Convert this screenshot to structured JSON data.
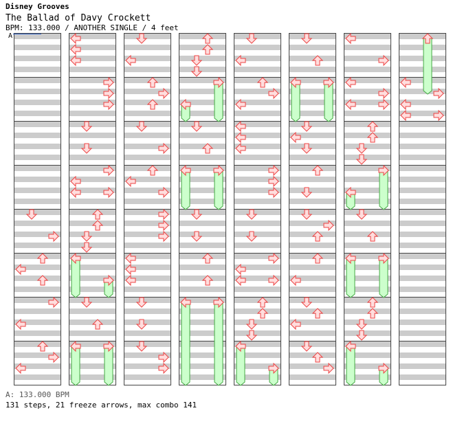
{
  "header": {
    "series": "Disney Grooves",
    "title": "The Ballad of Davy Crockett",
    "info": "BPM: 133.000 / ANOTHER SINGLE / 4 feet"
  },
  "bpm_marker": "A",
  "footer": {
    "bpm_text": "A: 133.000 BPM",
    "stats": "131 steps, 21 freeze arrows, max combo 141"
  },
  "colors": {
    "stripe": "#cccccc",
    "border": "#444444",
    "arrow_fill": "#ffdddd",
    "arrow_stroke": "#ee4444",
    "freeze_fill": "#ccffcc",
    "freeze_stroke": "#44aa44",
    "bpm_line": "#3366cc"
  },
  "chart": {
    "columns": 8,
    "blocks_per_column": 8,
    "rows_per_block": 8,
    "lanes": [
      "left",
      "down",
      "up",
      "right"
    ],
    "notes": [
      {
        "col": 1,
        "blk": 0,
        "row": 0,
        "lane": "left"
      },
      {
        "col": 1,
        "blk": 0,
        "row": 1,
        "lane": "left"
      },
      {
        "col": 1,
        "blk": 0,
        "row": 2,
        "lane": "left"
      },
      {
        "col": 2,
        "blk": 0,
        "row": 0,
        "lane": "down"
      },
      {
        "col": 2,
        "blk": 0,
        "row": 2,
        "lane": "left"
      },
      {
        "col": 3,
        "blk": 0,
        "row": 0,
        "lane": "up"
      },
      {
        "col": 3,
        "blk": 0,
        "row": 1,
        "lane": "up"
      },
      {
        "col": 3,
        "blk": 0,
        "row": 2,
        "lane": "down"
      },
      {
        "col": 3,
        "blk": 0,
        "row": 3,
        "lane": "down"
      },
      {
        "col": 4,
        "blk": 0,
        "row": 0,
        "lane": "down"
      },
      {
        "col": 4,
        "blk": 0,
        "row": 2,
        "lane": "left"
      },
      {
        "col": 5,
        "blk": 0,
        "row": 0,
        "lane": "down"
      },
      {
        "col": 5,
        "blk": 0,
        "row": 2,
        "lane": "up"
      },
      {
        "col": 6,
        "blk": 0,
        "row": 0,
        "lane": "left"
      },
      {
        "col": 6,
        "blk": 0,
        "row": 2,
        "lane": "right"
      },
      {
        "col": 7,
        "blk": 0,
        "row": 0,
        "lane": "up",
        "hold": 5
      },
      {
        "col": 1,
        "blk": 1,
        "row": 0,
        "lane": "right"
      },
      {
        "col": 1,
        "blk": 1,
        "row": 1,
        "lane": "right"
      },
      {
        "col": 1,
        "blk": 1,
        "row": 2,
        "lane": "right"
      },
      {
        "col": 2,
        "blk": 1,
        "row": 0,
        "lane": "up"
      },
      {
        "col": 2,
        "blk": 1,
        "row": 1,
        "lane": "right"
      },
      {
        "col": 2,
        "blk": 1,
        "row": 2,
        "lane": "up"
      },
      {
        "col": 3,
        "blk": 1,
        "row": 0,
        "lane": "right",
        "hold": 3.5
      },
      {
        "col": 3,
        "blk": 1,
        "row": 2,
        "lane": "left",
        "hold": 1.5
      },
      {
        "col": 4,
        "blk": 1,
        "row": 0,
        "lane": "up"
      },
      {
        "col": 4,
        "blk": 1,
        "row": 1,
        "lane": "right"
      },
      {
        "col": 4,
        "blk": 1,
        "row": 2,
        "lane": "left"
      },
      {
        "col": 5,
        "blk": 1,
        "row": 0,
        "lane": "left",
        "hold": 3.5
      },
      {
        "col": 5,
        "blk": 1,
        "row": 0,
        "lane": "right",
        "hold": 3.5
      },
      {
        "col": 6,
        "blk": 1,
        "row": 0,
        "lane": "left"
      },
      {
        "col": 6,
        "blk": 1,
        "row": 1,
        "lane": "right"
      },
      {
        "col": 6,
        "blk": 1,
        "row": 2,
        "lane": "left"
      },
      {
        "col": 6,
        "blk": 1,
        "row": 2,
        "lane": "right"
      },
      {
        "col": 7,
        "blk": 1,
        "row": 0,
        "lane": "left"
      },
      {
        "col": 7,
        "blk": 1,
        "row": 1,
        "lane": "right"
      },
      {
        "col": 7,
        "blk": 1,
        "row": 2,
        "lane": "left"
      },
      {
        "col": 7,
        "blk": 1,
        "row": 3,
        "lane": "left"
      },
      {
        "col": 7,
        "blk": 1,
        "row": 3,
        "lane": "right"
      },
      {
        "col": 1,
        "blk": 2,
        "row": 0,
        "lane": "down"
      },
      {
        "col": 1,
        "blk": 2,
        "row": 2,
        "lane": "down"
      },
      {
        "col": 2,
        "blk": 2,
        "row": 0,
        "lane": "down"
      },
      {
        "col": 2,
        "blk": 2,
        "row": 2,
        "lane": "right"
      },
      {
        "col": 3,
        "blk": 2,
        "row": 0,
        "lane": "down"
      },
      {
        "col": 3,
        "blk": 2,
        "row": 2,
        "lane": "up"
      },
      {
        "col": 4,
        "blk": 2,
        "row": 0,
        "lane": "left"
      },
      {
        "col": 4,
        "blk": 2,
        "row": 1,
        "lane": "left"
      },
      {
        "col": 4,
        "blk": 2,
        "row": 2,
        "lane": "left"
      },
      {
        "col": 5,
        "blk": 2,
        "row": 0,
        "lane": "down"
      },
      {
        "col": 5,
        "blk": 2,
        "row": 1,
        "lane": "left"
      },
      {
        "col": 5,
        "blk": 2,
        "row": 2,
        "lane": "down"
      },
      {
        "col": 6,
        "blk": 2,
        "row": 0,
        "lane": "up"
      },
      {
        "col": 6,
        "blk": 2,
        "row": 1,
        "lane": "up"
      },
      {
        "col": 6,
        "blk": 2,
        "row": 2,
        "lane": "down"
      },
      {
        "col": 6,
        "blk": 2,
        "row": 3,
        "lane": "down"
      },
      {
        "col": 1,
        "blk": 3,
        "row": 0,
        "lane": "right"
      },
      {
        "col": 1,
        "blk": 3,
        "row": 1,
        "lane": "left"
      },
      {
        "col": 1,
        "blk": 3,
        "row": 2,
        "lane": "left"
      },
      {
        "col": 1,
        "blk": 3,
        "row": 2,
        "lane": "right"
      },
      {
        "col": 2,
        "blk": 3,
        "row": 0,
        "lane": "up"
      },
      {
        "col": 2,
        "blk": 3,
        "row": 1,
        "lane": "left"
      },
      {
        "col": 2,
        "blk": 3,
        "row": 2,
        "lane": "right"
      },
      {
        "col": 3,
        "blk": 3,
        "row": 0,
        "lane": "left",
        "hold": 3.5
      },
      {
        "col": 3,
        "blk": 3,
        "row": 0,
        "lane": "right",
        "hold": 3.5
      },
      {
        "col": 4,
        "blk": 3,
        "row": 0,
        "lane": "right"
      },
      {
        "col": 4,
        "blk": 3,
        "row": 1,
        "lane": "right"
      },
      {
        "col": 4,
        "blk": 3,
        "row": 2,
        "lane": "right"
      },
      {
        "col": 5,
        "blk": 3,
        "row": 0,
        "lane": "up"
      },
      {
        "col": 5,
        "blk": 3,
        "row": 2,
        "lane": "down"
      },
      {
        "col": 6,
        "blk": 3,
        "row": 0,
        "lane": "right",
        "hold": 3.5
      },
      {
        "col": 6,
        "blk": 3,
        "row": 2,
        "lane": "left",
        "hold": 1.5
      },
      {
        "col": 0,
        "blk": 4,
        "row": 0,
        "lane": "down"
      },
      {
        "col": 0,
        "blk": 4,
        "row": 2,
        "lane": "right"
      },
      {
        "col": 1,
        "blk": 4,
        "row": 0,
        "lane": "up"
      },
      {
        "col": 1,
        "blk": 4,
        "row": 1,
        "lane": "up"
      },
      {
        "col": 1,
        "blk": 4,
        "row": 2,
        "lane": "down"
      },
      {
        "col": 1,
        "blk": 4,
        "row": 3,
        "lane": "down"
      },
      {
        "col": 2,
        "blk": 4,
        "row": 0,
        "lane": "right"
      },
      {
        "col": 2,
        "blk": 4,
        "row": 1,
        "lane": "right"
      },
      {
        "col": 2,
        "blk": 4,
        "row": 2,
        "lane": "right"
      },
      {
        "col": 3,
        "blk": 4,
        "row": 0,
        "lane": "down"
      },
      {
        "col": 3,
        "blk": 4,
        "row": 2,
        "lane": "down"
      },
      {
        "col": 4,
        "blk": 4,
        "row": 0,
        "lane": "down"
      },
      {
        "col": 4,
        "blk": 4,
        "row": 2,
        "lane": "down"
      },
      {
        "col": 5,
        "blk": 4,
        "row": 0,
        "lane": "down"
      },
      {
        "col": 5,
        "blk": 4,
        "row": 1,
        "lane": "right"
      },
      {
        "col": 5,
        "blk": 4,
        "row": 2,
        "lane": "up"
      },
      {
        "col": 6,
        "blk": 4,
        "row": 0,
        "lane": "down"
      },
      {
        "col": 6,
        "blk": 4,
        "row": 2,
        "lane": "up"
      },
      {
        "col": 0,
        "blk": 5,
        "row": 0,
        "lane": "up"
      },
      {
        "col": 0,
        "blk": 5,
        "row": 1,
        "lane": "left"
      },
      {
        "col": 0,
        "blk": 5,
        "row": 2,
        "lane": "up"
      },
      {
        "col": 1,
        "blk": 5,
        "row": 0,
        "lane": "left",
        "hold": 3.5
      },
      {
        "col": 1,
        "blk": 5,
        "row": 2,
        "lane": "right",
        "hold": 1.5
      },
      {
        "col": 2,
        "blk": 5,
        "row": 0,
        "lane": "left"
      },
      {
        "col": 2,
        "blk": 5,
        "row": 1,
        "lane": "left"
      },
      {
        "col": 2,
        "blk": 5,
        "row": 2,
        "lane": "left"
      },
      {
        "col": 3,
        "blk": 5,
        "row": 0,
        "lane": "up"
      },
      {
        "col": 3,
        "blk": 5,
        "row": 2,
        "lane": "up"
      },
      {
        "col": 4,
        "blk": 5,
        "row": 0,
        "lane": "right"
      },
      {
        "col": 4,
        "blk": 5,
        "row": 1,
        "lane": "left"
      },
      {
        "col": 4,
        "blk": 5,
        "row": 2,
        "lane": "left"
      },
      {
        "col": 4,
        "blk": 5,
        "row": 2,
        "lane": "right"
      },
      {
        "col": 5,
        "blk": 5,
        "row": 0,
        "lane": "up"
      },
      {
        "col": 5,
        "blk": 5,
        "row": 2,
        "lane": "left"
      },
      {
        "col": 6,
        "blk": 5,
        "row": 0,
        "lane": "left",
        "hold": 3.5
      },
      {
        "col": 6,
        "blk": 5,
        "row": 0,
        "lane": "right",
        "hold": 3.5
      },
      {
        "col": 0,
        "blk": 6,
        "row": 0,
        "lane": "right"
      },
      {
        "col": 0,
        "blk": 6,
        "row": 2,
        "lane": "left"
      },
      {
        "col": 1,
        "blk": 6,
        "row": 0,
        "lane": "down"
      },
      {
        "col": 1,
        "blk": 6,
        "row": 2,
        "lane": "up"
      },
      {
        "col": 2,
        "blk": 6,
        "row": 0,
        "lane": "down"
      },
      {
        "col": 2,
        "blk": 6,
        "row": 2,
        "lane": "down"
      },
      {
        "col": 3,
        "blk": 6,
        "row": 0,
        "lane": "left",
        "hold": 7.5
      },
      {
        "col": 3,
        "blk": 6,
        "row": 0,
        "lane": "right",
        "hold": 7.5
      },
      {
        "col": 4,
        "blk": 6,
        "row": 0,
        "lane": "up"
      },
      {
        "col": 4,
        "blk": 6,
        "row": 1,
        "lane": "up"
      },
      {
        "col": 4,
        "blk": 6,
        "row": 2,
        "lane": "down"
      },
      {
        "col": 4,
        "blk": 6,
        "row": 3,
        "lane": "down"
      },
      {
        "col": 5,
        "blk": 6,
        "row": 0,
        "lane": "down"
      },
      {
        "col": 5,
        "blk": 6,
        "row": 1,
        "lane": "up"
      },
      {
        "col": 5,
        "blk": 6,
        "row": 2,
        "lane": "left"
      },
      {
        "col": 6,
        "blk": 6,
        "row": 0,
        "lane": "up"
      },
      {
        "col": 6,
        "blk": 6,
        "row": 1,
        "lane": "up"
      },
      {
        "col": 6,
        "blk": 6,
        "row": 2,
        "lane": "down"
      },
      {
        "col": 6,
        "blk": 6,
        "row": 3,
        "lane": "down"
      },
      {
        "col": 0,
        "blk": 7,
        "row": 0,
        "lane": "up"
      },
      {
        "col": 0,
        "blk": 7,
        "row": 1,
        "lane": "right"
      },
      {
        "col": 0,
        "blk": 7,
        "row": 2,
        "lane": "left"
      },
      {
        "col": 1,
        "blk": 7,
        "row": 0,
        "lane": "left",
        "hold": 3.5
      },
      {
        "col": 1,
        "blk": 7,
        "row": 0,
        "lane": "right",
        "hold": 3.5
      },
      {
        "col": 2,
        "blk": 7,
        "row": 0,
        "lane": "down"
      },
      {
        "col": 2,
        "blk": 7,
        "row": 1,
        "lane": "right"
      },
      {
        "col": 2,
        "blk": 7,
        "row": 2,
        "lane": "right"
      },
      {
        "col": 4,
        "blk": 7,
        "row": 0,
        "lane": "left",
        "hold": 3.5
      },
      {
        "col": 4,
        "blk": 7,
        "row": 2,
        "lane": "right",
        "hold": 1.5
      },
      {
        "col": 5,
        "blk": 7,
        "row": 0,
        "lane": "down"
      },
      {
        "col": 5,
        "blk": 7,
        "row": 1,
        "lane": "up"
      },
      {
        "col": 5,
        "blk": 7,
        "row": 2,
        "lane": "right"
      },
      {
        "col": 6,
        "blk": 7,
        "row": 0,
        "lane": "left",
        "hold": 3.5
      },
      {
        "col": 6,
        "blk": 7,
        "row": 2,
        "lane": "right",
        "hold": 1.5
      }
    ]
  }
}
